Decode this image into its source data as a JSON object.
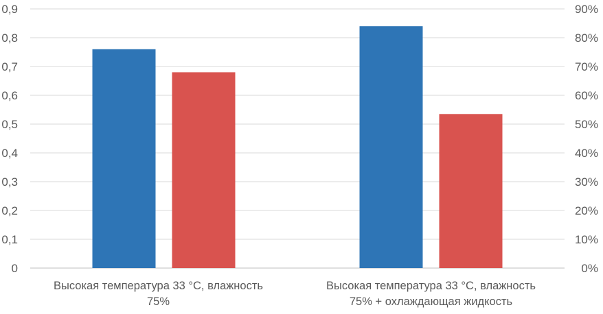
{
  "chart_data": {
    "type": "bar",
    "categories": [
      [
        "Высокая температура 33 °С, влажность",
        "75%"
      ],
      [
        "Высокая температура 33 °С, влажность",
        "75% + охлаждающая жидкость"
      ]
    ],
    "series": [
      {
        "axis": "left",
        "color": "#2e75b6",
        "values": [
          0.76,
          0.84
        ]
      },
      {
        "axis": "right",
        "color": "#d9534f",
        "values": [
          0.68,
          0.535
        ]
      }
    ],
    "y_left": {
      "range": [
        0,
        0.9
      ],
      "ticks": [
        "0",
        "0,1",
        "0,2",
        "0,3",
        "0,4",
        "0,5",
        "0,6",
        "0,7",
        "0,8",
        "0,9"
      ]
    },
    "y_right": {
      "range": [
        0,
        0.9
      ],
      "ticks": [
        "0%",
        "10%",
        "20%",
        "30%",
        "40%",
        "50%",
        "60%",
        "70%",
        "80%",
        "90%"
      ]
    },
    "grid": true,
    "legend": "none"
  }
}
